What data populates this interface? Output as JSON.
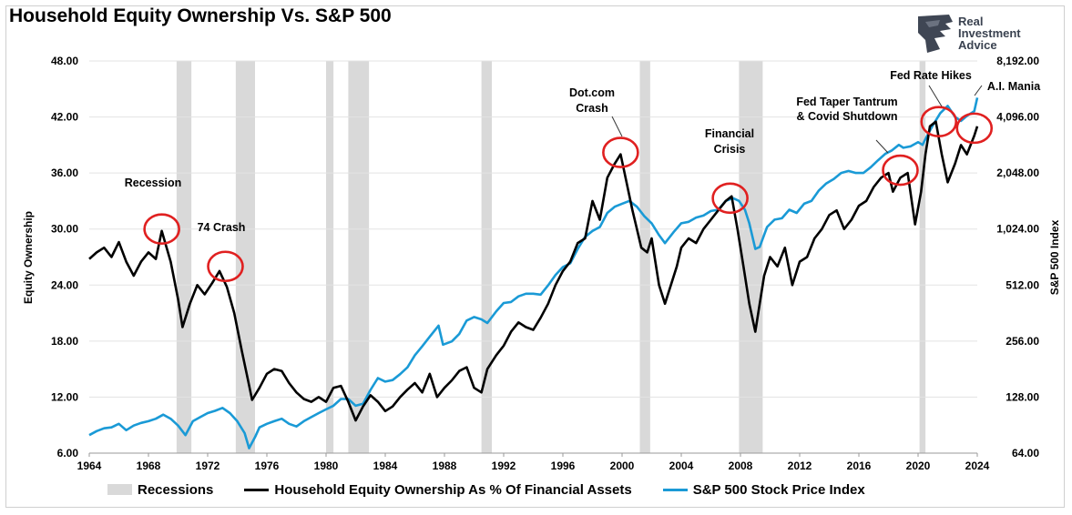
{
  "title": "Household Equity Ownership Vs. S&P 500",
  "logo": {
    "lines": [
      "Real",
      "Investment",
      "Advice"
    ],
    "icon": "eagle-icon"
  },
  "colors": {
    "household": "#000000",
    "sp500": "#1a9ad6",
    "recession": "#d9d9d9",
    "circle": "#e02020"
  },
  "chart_data": {
    "type": "line",
    "title": "Household Equity Ownership Vs. S&P 500",
    "xlabel": "",
    "ylabel_left": "Equity Ownership",
    "ylabel_right": "S&P 500 Index",
    "xlim": [
      1964,
      2024
    ],
    "ylim_left": [
      6,
      48
    ],
    "ylim_right": [
      64,
      8192
    ],
    "right_scale": "log2",
    "grid": "horizontal",
    "legend_position": "bottom",
    "x_ticks": [
      "1964",
      "1968",
      "1972",
      "1976",
      "1980",
      "1984",
      "1988",
      "1992",
      "1996",
      "2000",
      "2004",
      "2008",
      "2012",
      "2016",
      "2020",
      "2024"
    ],
    "y_ticks_left": [
      "6.00",
      "12.00",
      "18.00",
      "24.00",
      "30.00",
      "36.00",
      "42.00",
      "48.00"
    ],
    "y_ticks_right": [
      "64.00",
      "128.00",
      "256.00",
      "512.00",
      "1,024.00",
      "2,048.00",
      "4,096.00",
      "8,192.00"
    ],
    "recessions": [
      {
        "start": 1969.9,
        "end": 1970.9
      },
      {
        "start": 1973.9,
        "end": 1975.2
      },
      {
        "start": 1980.0,
        "end": 1980.5
      },
      {
        "start": 1981.5,
        "end": 1982.9
      },
      {
        "start": 1990.5,
        "end": 1991.2
      },
      {
        "start": 2001.2,
        "end": 2001.9
      },
      {
        "start": 2007.9,
        "end": 2009.5
      },
      {
        "start": 2020.1,
        "end": 2020.5
      }
    ],
    "series": [
      {
        "name": "Household Equity Ownership As % Of Financial Assets",
        "axis": "left",
        "x": [
          1964.0,
          1964.5,
          1965.0,
          1965.5,
          1966.0,
          1966.5,
          1967.0,
          1967.5,
          1968.0,
          1968.5,
          1968.9,
          1969.5,
          1970.0,
          1970.3,
          1970.8,
          1971.3,
          1971.8,
          1972.3,
          1972.8,
          1973.3,
          1973.8,
          1974.3,
          1974.7,
          1975.0,
          1975.5,
          1976.0,
          1976.5,
          1977.0,
          1977.5,
          1978.0,
          1978.5,
          1979.0,
          1979.5,
          1980.0,
          1980.5,
          1981.0,
          1981.5,
          1982.0,
          1982.5,
          1983.0,
          1983.5,
          1984.0,
          1984.5,
          1985.0,
          1985.5,
          1986.0,
          1986.5,
          1987.0,
          1987.5,
          1988.0,
          1988.5,
          1989.0,
          1989.5,
          1990.0,
          1990.5,
          1990.9,
          1991.5,
          1992.0,
          1992.5,
          1993.0,
          1993.5,
          1994.0,
          1994.5,
          1995.0,
          1995.5,
          1996.0,
          1996.5,
          1997.0,
          1997.5,
          1998.0,
          1998.5,
          1999.0,
          1999.5,
          1999.9,
          2000.3,
          2000.7,
          2001.0,
          2001.3,
          2001.7,
          2002.0,
          2002.5,
          2002.9,
          2003.3,
          2003.7,
          2004.0,
          2004.5,
          2005.0,
          2005.5,
          2006.0,
          2006.5,
          2007.0,
          2007.4,
          2007.8,
          2008.2,
          2008.6,
          2009.0,
          2009.2,
          2009.6,
          2010.0,
          2010.5,
          2011.0,
          2011.5,
          2012.0,
          2012.5,
          2013.0,
          2013.5,
          2014.0,
          2014.5,
          2015.0,
          2015.5,
          2016.0,
          2016.5,
          2017.0,
          2017.5,
          2018.0,
          2018.3,
          2018.8,
          2019.3,
          2019.8,
          2020.2,
          2020.5,
          2020.8,
          2021.2,
          2021.6,
          2022.0,
          2022.5,
          2022.9,
          2023.3,
          2023.8,
          2024.0
        ],
        "values": [
          26.8,
          27.5,
          28.0,
          27.0,
          28.6,
          26.5,
          25.0,
          26.5,
          27.5,
          26.8,
          29.8,
          26.5,
          22.5,
          19.5,
          22.0,
          24.0,
          23.0,
          24.2,
          25.5,
          23.8,
          21.0,
          17.0,
          14.0,
          11.7,
          13.0,
          14.5,
          15.0,
          14.8,
          13.5,
          12.5,
          11.8,
          11.5,
          12.0,
          11.5,
          13.0,
          13.2,
          11.5,
          9.5,
          11.0,
          12.2,
          11.5,
          10.5,
          11.0,
          12.0,
          12.8,
          13.5,
          12.5,
          14.5,
          12.0,
          13.0,
          13.8,
          14.8,
          15.2,
          13.0,
          12.5,
          15.0,
          16.5,
          17.5,
          19.0,
          20.0,
          19.5,
          19.2,
          20.5,
          22.0,
          24.0,
          25.5,
          26.5,
          28.5,
          29.0,
          33.0,
          31.0,
          35.5,
          37.0,
          38.0,
          35.0,
          32.0,
          30.0,
          28.0,
          27.5,
          29.0,
          24.0,
          22.0,
          24.0,
          26.0,
          28.0,
          29.0,
          28.5,
          30.0,
          31.0,
          32.0,
          33.0,
          33.5,
          30.0,
          26.0,
          22.0,
          19.0,
          21.0,
          25.0,
          27.0,
          26.0,
          28.0,
          24.0,
          26.5,
          27.0,
          29.0,
          30.0,
          31.5,
          32.0,
          30.0,
          31.0,
          32.5,
          33.0,
          34.5,
          35.5,
          36.0,
          34.0,
          35.5,
          36.0,
          30.5,
          34.0,
          38.0,
          41.0,
          41.5,
          38.0,
          35.0,
          37.0,
          39.0,
          38.0,
          40.0,
          41.0
        ]
      },
      {
        "name": "S&P 500 Stock Price Index",
        "axis": "right",
        "x": [
          1964.0,
          1964.5,
          1965.0,
          1965.5,
          1966.0,
          1966.5,
          1967.0,
          1967.5,
          1968.0,
          1968.5,
          1969.0,
          1969.5,
          1970.0,
          1970.5,
          1971.0,
          1971.5,
          1972.0,
          1972.5,
          1973.0,
          1973.5,
          1974.0,
          1974.5,
          1974.8,
          1975.2,
          1975.5,
          1976.0,
          1976.5,
          1977.0,
          1977.5,
          1978.0,
          1978.5,
          1979.0,
          1979.5,
          1980.0,
          1980.5,
          1981.0,
          1981.5,
          1982.0,
          1982.5,
          1983.0,
          1983.5,
          1984.0,
          1984.5,
          1985.0,
          1985.5,
          1986.0,
          1986.5,
          1987.0,
          1987.6,
          1987.9,
          1988.5,
          1989.0,
          1989.5,
          1990.0,
          1990.5,
          1990.9,
          1991.5,
          1992.0,
          1992.5,
          1993.0,
          1993.5,
          1994.0,
          1994.5,
          1995.0,
          1995.5,
          1996.0,
          1996.5,
          1997.0,
          1997.5,
          1998.0,
          1998.5,
          1999.0,
          1999.5,
          2000.0,
          2000.5,
          2001.0,
          2001.5,
          2002.0,
          2002.5,
          2002.9,
          2003.5,
          2004.0,
          2004.5,
          2005.0,
          2005.5,
          2006.0,
          2006.5,
          2007.0,
          2007.5,
          2007.9,
          2008.3,
          2008.6,
          2009.0,
          2009.3,
          2009.8,
          2010.3,
          2010.8,
          2011.3,
          2011.8,
          2012.3,
          2012.8,
          2013.3,
          2013.8,
          2014.3,
          2014.8,
          2015.3,
          2015.8,
          2016.3,
          2016.8,
          2017.3,
          2017.8,
          2018.2,
          2018.7,
          2019.0,
          2019.5,
          2020.0,
          2020.3,
          2020.7,
          2021.0,
          2021.5,
          2022.0,
          2022.5,
          2022.9,
          2023.3,
          2023.8,
          2024.0
        ],
        "values": [
          80,
          84,
          87,
          88,
          92,
          85,
          90,
          93,
          95,
          98,
          103,
          98,
          90,
          80,
          95,
          100,
          105,
          108,
          112,
          105,
          95,
          82,
          68,
          78,
          88,
          92,
          95,
          98,
          92,
          89,
          95,
          100,
          105,
          110,
          115,
          125,
          125,
          115,
          118,
          140,
          162,
          155,
          158,
          170,
          185,
          215,
          240,
          270,
          310,
          245,
          255,
          280,
          330,
          345,
          335,
          320,
          370,
          410,
          415,
          445,
          460,
          460,
          455,
          510,
          580,
          640,
          670,
          800,
          930,
          1000,
          1050,
          1250,
          1350,
          1400,
          1450,
          1350,
          1200,
          1100,
          950,
          860,
          990,
          1100,
          1120,
          1180,
          1210,
          1280,
          1300,
          1450,
          1500,
          1450,
          1300,
          1100,
          800,
          820,
          1050,
          1150,
          1170,
          1300,
          1250,
          1400,
          1450,
          1650,
          1800,
          1900,
          2050,
          2100,
          2050,
          2050,
          2200,
          2400,
          2600,
          2700,
          2900,
          2800,
          2850,
          3000,
          2900,
          3350,
          3700,
          4300,
          4700,
          4100,
          3900,
          4150,
          4400,
          5200
        ]
      }
    ],
    "annotations": [
      {
        "text": "Recession",
        "x": 1968.9,
        "y": 30.0
      },
      {
        "text": "74 Crash",
        "x": 1973.2,
        "y": 26.0
      },
      {
        "text": "Dot.com Crash",
        "x": 1999.9,
        "y": 38.2
      },
      {
        "text": "Financial Crisis",
        "x": 2007.3,
        "y": 33.3
      },
      {
        "text": "Fed Taper Tantrum & Covid Shutdown",
        "x": 2018.8,
        "y": 36.3
      },
      {
        "text": "Fed Rate Hikes",
        "x": 2021.4,
        "y": 41.5
      },
      {
        "text": "A.I. Mania",
        "x": 2023.8,
        "y": 40.8
      }
    ],
    "annotation_labels": {
      "recession": "Recession",
      "crash74": "74 Crash",
      "dotcom1": "Dot.com",
      "dotcom2": "Crash",
      "financial1": "Financial",
      "financial2": "Crisis",
      "taper1": "Fed Taper Tantrum",
      "taper2": "& Covid Shutdown",
      "ratehikes": "Fed Rate Hikes",
      "aimania": "A.I. Mania"
    }
  },
  "legend": {
    "recessions": "Recessions",
    "household": "Household Equity Ownership As % Of Financial Assets",
    "sp500": "S&P 500 Stock Price Index"
  }
}
